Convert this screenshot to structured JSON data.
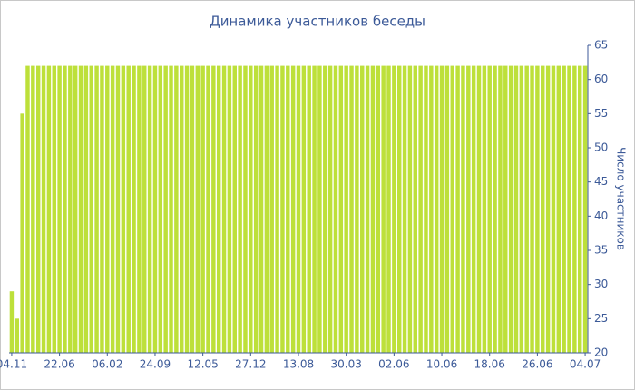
{
  "chart_data": {
    "type": "bar",
    "title": "Динамика участников беседы",
    "y_label": "Число участников",
    "categories": [
      "04.11",
      null,
      null,
      null,
      null,
      null,
      null,
      null,
      null,
      "22.06",
      null,
      null,
      null,
      null,
      null,
      null,
      null,
      null,
      "06.02",
      null,
      null,
      null,
      null,
      null,
      null,
      null,
      null,
      "24.09",
      null,
      null,
      null,
      null,
      null,
      null,
      null,
      null,
      "12.05",
      null,
      null,
      null,
      null,
      null,
      null,
      null,
      null,
      "27.12",
      null,
      null,
      null,
      null,
      null,
      null,
      null,
      null,
      "13.08",
      null,
      null,
      null,
      null,
      null,
      null,
      null,
      null,
      "30.03",
      null,
      null,
      null,
      null,
      null,
      null,
      null,
      null,
      "02.06",
      null,
      null,
      null,
      null,
      null,
      null,
      null,
      null,
      "10.06",
      null,
      null,
      null,
      null,
      null,
      null,
      null,
      null,
      "18.06",
      null,
      null,
      null,
      null,
      null,
      null,
      null,
      null,
      "26.06",
      null,
      null,
      null,
      null,
      null,
      null,
      null,
      null,
      "04.07"
    ],
    "values": [
      29,
      25,
      55,
      62,
      62,
      62,
      62,
      62,
      62,
      62,
      62,
      62,
      62,
      62,
      62,
      62,
      62,
      62,
      62,
      62,
      62,
      62,
      62,
      62,
      62,
      62,
      62,
      62,
      62,
      62,
      62,
      62,
      62,
      62,
      62,
      62,
      62,
      62,
      62,
      62,
      62,
      62,
      62,
      62,
      62,
      62,
      62,
      62,
      62,
      62,
      62,
      62,
      62,
      62,
      62,
      62,
      62,
      62,
      62,
      62,
      62,
      62,
      62,
      62,
      62,
      62,
      62,
      62,
      62,
      62,
      62,
      62,
      62,
      62,
      62,
      62,
      62,
      62,
      62,
      62,
      62,
      62,
      62,
      62,
      62,
      62,
      62,
      62,
      62,
      62,
      62,
      62,
      62,
      62,
      62,
      62,
      62,
      62,
      62,
      62,
      62,
      62,
      62,
      62,
      62,
      62,
      62,
      62,
      62
    ],
    "color": "#bde03a",
    "ylim": [
      20,
      65
    ],
    "yticks": [
      20,
      25,
      30,
      35,
      40,
      45,
      50,
      55,
      60,
      65
    ],
    "y_axis_side": "right"
  }
}
